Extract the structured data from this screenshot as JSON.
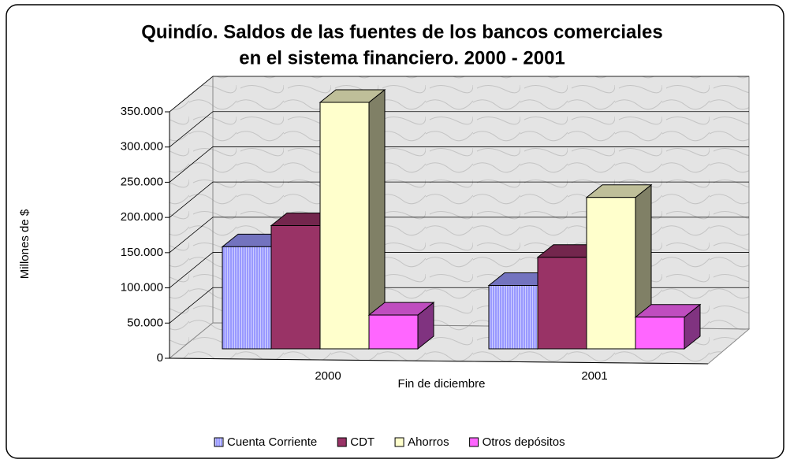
{
  "chart_data": {
    "type": "bar3d",
    "title": [
      "Quindío. Saldos de las fuentes de los bancos comerciales",
      "en el sistema financiero. 2000 - 2001"
    ],
    "y_label": "Millones de $",
    "x_label": "Fin de diciembre",
    "categories": [
      "2000",
      "2001"
    ],
    "series": [
      {
        "name": "Cuenta Corriente",
        "color": "#9999ff",
        "values": [
          145000,
          90000
        ]
      },
      {
        "name": "CDT",
        "color": "#993366",
        "values": [
          175000,
          130000
        ]
      },
      {
        "name": "Ahorros",
        "color": "#ffffcc",
        "values": [
          350000,
          215000
        ]
      },
      {
        "name": "Otros depósitos",
        "color": "#ff66ff",
        "values": [
          48000,
          45000
        ]
      }
    ],
    "ylim": [
      0,
      350000
    ],
    "yticks": [
      0,
      {
        "value": 50000,
        "label": "50.000"
      },
      {
        "value": 100000,
        "label": "100.000"
      },
      {
        "value": 150000,
        "label": "150.000"
      },
      {
        "value": 200000,
        "label": "200.000"
      },
      {
        "value": 250000,
        "label": "250.000"
      },
      {
        "value": 300000,
        "label": "300.000"
      },
      {
        "value": 350000,
        "label": "350.000"
      }
    ],
    "grid": true
  }
}
